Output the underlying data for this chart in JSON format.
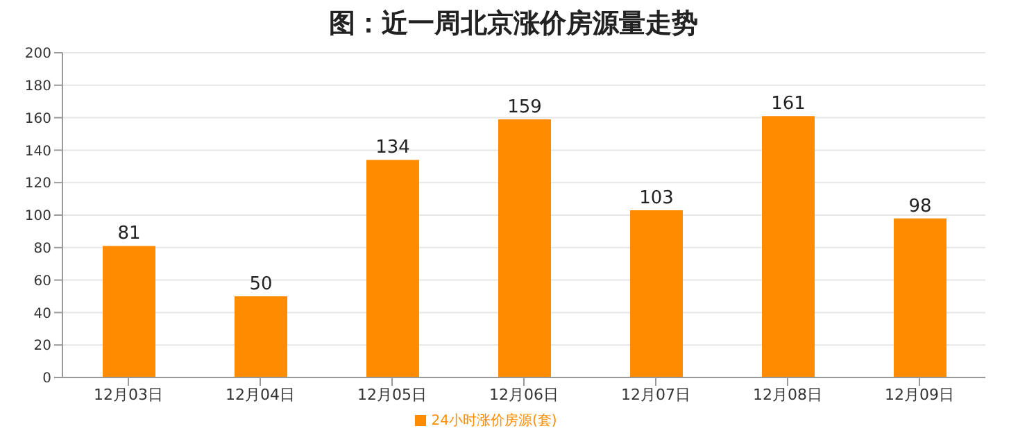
{
  "chart_data": {
    "type": "bar",
    "title": "图：近一周北京涨价房源量走势",
    "categories": [
      "12月03日",
      "12月04日",
      "12月05日",
      "12月06日",
      "12月07日",
      "12月08日",
      "12月09日"
    ],
    "series": [
      {
        "name": "24小时涨价房源(套)",
        "color": "#ff8c00",
        "values": [
          81,
          50,
          134,
          159,
          103,
          161,
          98
        ]
      }
    ],
    "ylim": [
      0,
      200
    ],
    "yticks": [
      0,
      20,
      40,
      60,
      80,
      100,
      120,
      140,
      160,
      180,
      200
    ],
    "grid": "y",
    "legend": "bottom",
    "data_labels": true
  }
}
